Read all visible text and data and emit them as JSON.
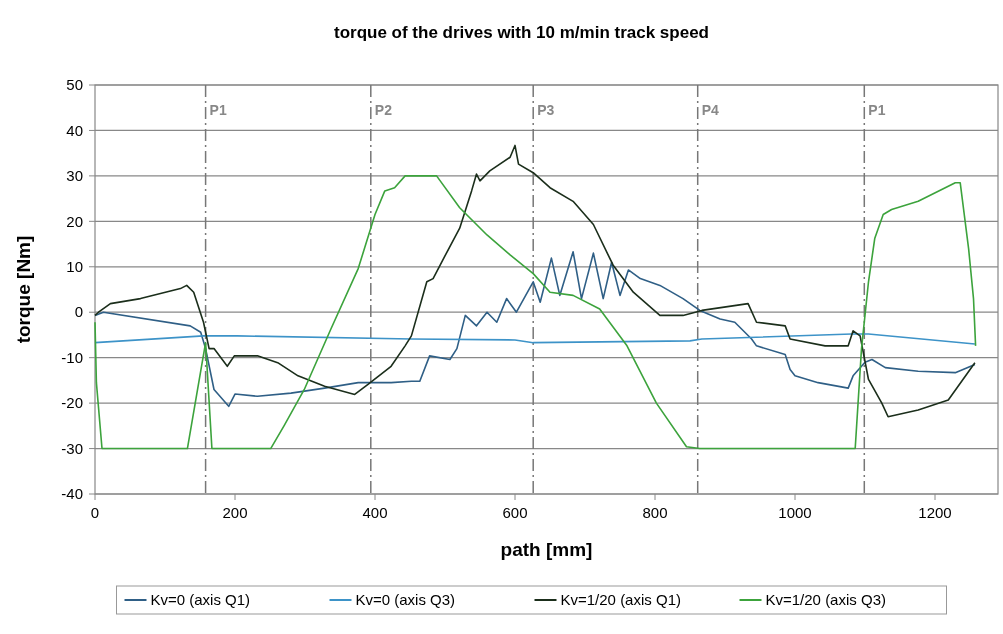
{
  "chart_data": {
    "type": "line",
    "title": "torque of the drives with 10 m/min track speed",
    "xlabel": "path [mm]",
    "ylabel": "torque [Nm]",
    "xlim": [
      0,
      1290
    ],
    "xticks": [
      0,
      200,
      400,
      600,
      800,
      1000,
      1200
    ],
    "ylim": [
      -40,
      50
    ],
    "yticks": [
      -40,
      -30,
      -20,
      -10,
      0,
      10,
      20,
      30,
      40,
      50
    ],
    "grid": "y",
    "legend": "bottom",
    "line_style": "solid",
    "ref_lines": [
      {
        "axis": "x",
        "value": 158,
        "label": "P1"
      },
      {
        "axis": "x",
        "value": 394,
        "label": "P2"
      },
      {
        "axis": "x",
        "value": 626,
        "label": "P3"
      },
      {
        "axis": "x",
        "value": 861,
        "label": "P4"
      },
      {
        "axis": "x",
        "value": 1099,
        "label": "P1"
      }
    ],
    "series": [
      {
        "name": "Kv=0 (axis Q1)",
        "color": "#2f5f86",
        "x": [
          0,
          12,
          136,
          151,
          158,
          170,
          191,
          200,
          232,
          280,
          328,
          376,
          423,
          452,
          464,
          478,
          507,
          517,
          529,
          545,
          560,
          574,
          588,
          602,
          626,
          636,
          652,
          664,
          683,
          695,
          712,
          726,
          738,
          750,
          762,
          779,
          807,
          840,
          864,
          893,
          914,
          938,
          945,
          986,
          993,
          1000,
          1033,
          1076,
          1083,
          1100,
          1110,
          1129,
          1176,
          1229,
          1257
        ],
        "values": [
          -0.7,
          0,
          -3,
          -4.4,
          -8,
          -17,
          -20.7,
          -18,
          -18.5,
          -17.8,
          -16.7,
          -15.5,
          -15.5,
          -15.2,
          -15.2,
          -9.6,
          -10.4,
          -8,
          -0.7,
          -3,
          0,
          -2.2,
          3,
          0,
          6.7,
          2.2,
          11.9,
          3.7,
          13.3,
          3,
          13,
          3,
          11,
          3.7,
          9.3,
          7.4,
          5.9,
          3,
          0.4,
          -1.5,
          -2.2,
          -5.9,
          -7.4,
          -9.3,
          -12.6,
          -14,
          -15.5,
          -16.7,
          -14,
          -11,
          -10.4,
          -12.2,
          -13,
          -13.3,
          -11.5
        ]
      },
      {
        "name": "Kv=0 (axis Q3)",
        "color": "#3d93c8",
        "x": [
          0,
          155,
          203,
          452,
          600,
          626,
          850,
          867,
          1081,
          1105,
          1257
        ],
        "values": [
          -6.7,
          -5.2,
          -5.2,
          -5.9,
          -6.1,
          -6.7,
          -6.3,
          -5.9,
          -4.8,
          -4.8,
          -7
        ]
      },
      {
        "name": "Kv=1/20 (axis Q1)",
        "color": "#1b2e1b",
        "x": [
          0,
          5,
          22,
          65,
          122,
          131,
          141,
          155,
          163,
          170,
          189,
          199,
          232,
          261,
          290,
          328,
          371,
          390,
          423,
          443,
          452,
          474,
          483,
          503,
          521,
          538,
          545,
          550,
          564,
          593,
          600,
          605,
          626,
          650,
          683,
          712,
          740,
          769,
          807,
          840,
          867,
          933,
          945,
          986,
          993,
          1043,
          1076,
          1083,
          1093,
          1105,
          1124,
          1133,
          1176,
          1219,
          1257
        ],
        "values": [
          -0.7,
          0,
          1.9,
          3,
          5.2,
          5.9,
          4.4,
          -2.2,
          -8,
          -8,
          -11.9,
          -9.6,
          -9.6,
          -11.1,
          -14,
          -16.3,
          -18.1,
          -15.9,
          -11.9,
          -7.4,
          -5.2,
          6.7,
          7.4,
          13.3,
          18.5,
          26.7,
          30.4,
          28.9,
          31.1,
          34.1,
          36.7,
          32.6,
          30.7,
          27.4,
          24.4,
          19.3,
          10.4,
          4.4,
          -0.7,
          -0.7,
          0.4,
          1.9,
          -2.2,
          -3,
          -5.9,
          -7.4,
          -7.4,
          -4.1,
          -5.2,
          -14.8,
          -20,
          -23,
          -21.5,
          -19.3,
          -11.1
        ]
      },
      {
        "name": "Kv=1/20 (axis Q3)",
        "color": "#3ca33c",
        "x": [
          0,
          2,
          10,
          132,
          158,
          167,
          251,
          270,
          299,
          337,
          376,
          400,
          414,
          428,
          443,
          488,
          521,
          560,
          593,
          626,
          650,
          683,
          721,
          760,
          802,
          845,
          864,
          1086,
          1095,
          1105,
          1114,
          1126,
          1138,
          1176,
          1229,
          1236,
          1248,
          1255,
          1258
        ],
        "values": [
          -2.2,
          -15.5,
          -30,
          -30,
          -6.7,
          -30,
          -30,
          -25,
          -17,
          -3.7,
          9.6,
          21.5,
          26.7,
          27.4,
          30,
          30,
          23,
          17,
          12.6,
          8.5,
          4.4,
          3.7,
          0.7,
          -7.4,
          -20,
          -29.6,
          -30,
          -30,
          -8,
          6.7,
          16.3,
          21.5,
          22.6,
          24.4,
          28.5,
          28.5,
          14,
          3,
          -7.4
        ]
      }
    ]
  }
}
